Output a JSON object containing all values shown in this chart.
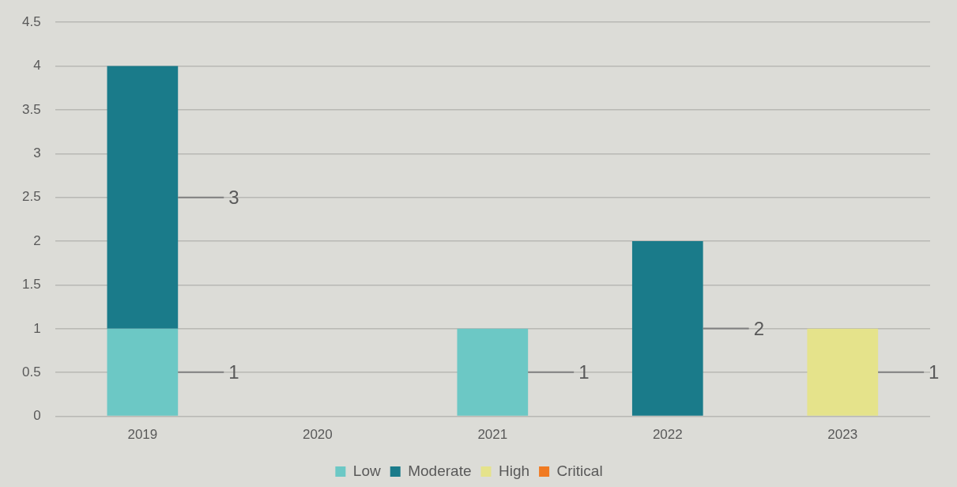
{
  "chart_data": {
    "type": "bar",
    "stacked": true,
    "categories": [
      "2019",
      "2020",
      "2021",
      "2022",
      "2023"
    ],
    "series": [
      {
        "name": "Low",
        "color": "#6cc8c5",
        "values": [
          1,
          null,
          1,
          null,
          null
        ],
        "value_labels": [
          "1",
          null,
          "1",
          null,
          null
        ]
      },
      {
        "name": "Moderate",
        "color": "#1a7b8a",
        "values": [
          3,
          null,
          null,
          2,
          null
        ],
        "value_labels": [
          "3",
          null,
          null,
          "2",
          null
        ]
      },
      {
        "name": "High",
        "color": "#e5e38b",
        "values": [
          null,
          null,
          null,
          null,
          1
        ],
        "value_labels": [
          null,
          null,
          null,
          null,
          "1"
        ]
      },
      {
        "name": "Critical",
        "color": "#f07a22",
        "values": [
          null,
          null,
          null,
          null,
          null
        ]
      }
    ],
    "ylim": [
      0,
      4.5
    ],
    "yticks": [
      0,
      0.5,
      1,
      1.5,
      2,
      2.5,
      3,
      3.5,
      4,
      4.5
    ],
    "grid": "y",
    "legend": "bottom"
  }
}
